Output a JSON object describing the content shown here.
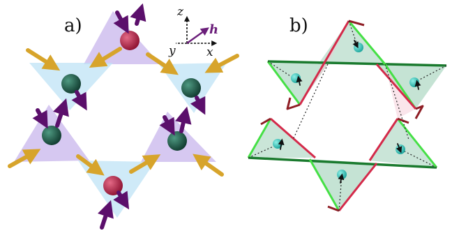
{
  "panels": {
    "a": {
      "label": "a)"
    },
    "b": {
      "label": "b)"
    }
  },
  "axes": {
    "z": "z",
    "y": "y",
    "x": "x",
    "h": "h"
  },
  "colors": {
    "purple_triangle": "#b49ae6",
    "blue_triangle": "#bfe3f6",
    "red_ion": "#b0213f",
    "green_ion": "#1f5b4a",
    "gold_arrow": "#d7a42b",
    "purple_arrow": "#5b0f6b",
    "dark_green_edge": "#1a7a2e",
    "light_green_edge": "#45e045",
    "red_edge": "#d42a4a",
    "dark_red_edge": "#8f1e25",
    "cyan_ion": "#34c0b8"
  },
  "icons": {
    "spin_arrow": "arrow",
    "ion": "sphere",
    "tetrahedron": "triangle"
  }
}
